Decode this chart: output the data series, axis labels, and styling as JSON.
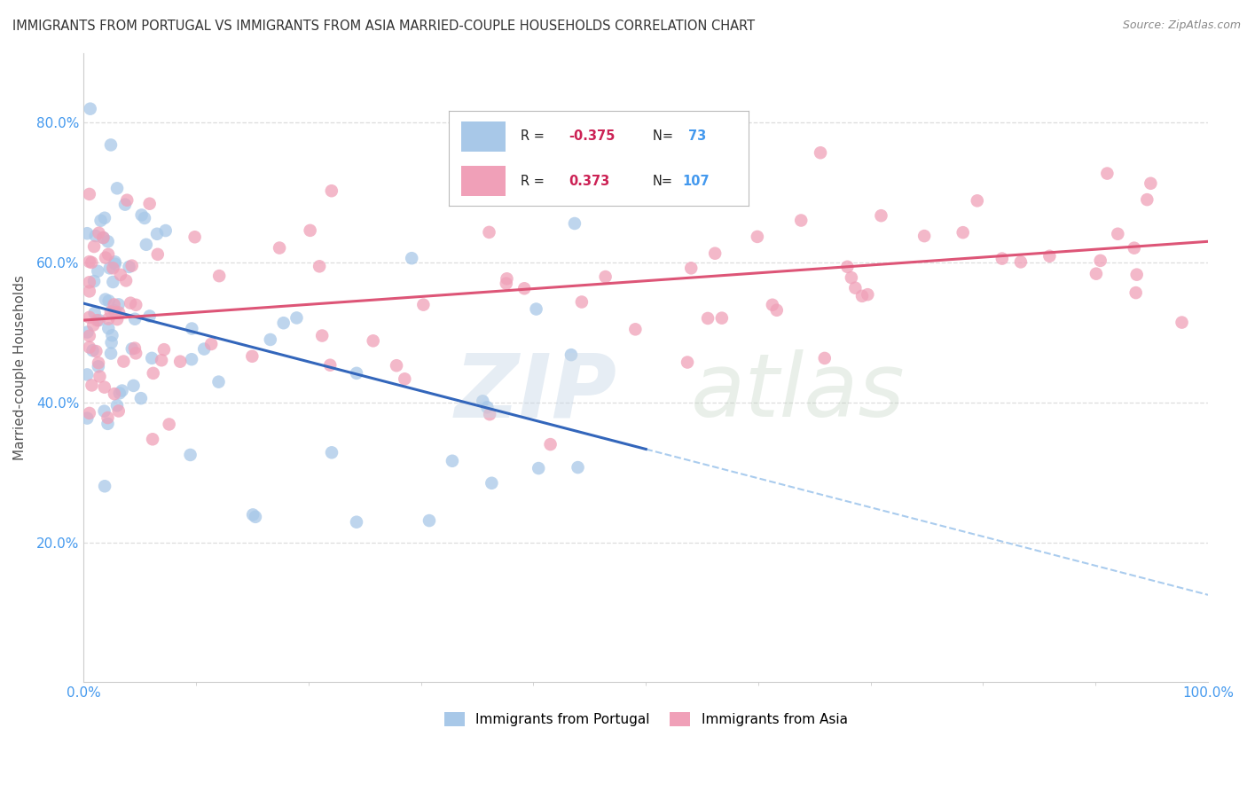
{
  "title": "IMMIGRANTS FROM PORTUGAL VS IMMIGRANTS FROM ASIA MARRIED-COUPLE HOUSEHOLDS CORRELATION CHART",
  "source": "Source: ZipAtlas.com",
  "ylabel": "Married-couple Households",
  "legend1_label": "Immigrants from Portugal",
  "legend2_label": "Immigrants from Asia",
  "r1": -0.375,
  "n1": 73,
  "r2": 0.373,
  "n2": 107,
  "color_portugal": "#a8c8e8",
  "color_asia": "#f0a0b8",
  "line_color_portugal": "#3366bb",
  "line_color_asia": "#dd5577",
  "line_color_dashed": "#aaccee",
  "ytick_color": "#4499ee",
  "xtick_color": "#4499ee",
  "ylabel_color": "#555555",
  "title_color": "#333333",
  "source_color": "#888888",
  "grid_color": "#dddddd",
  "port_seed": 7,
  "asia_seed": 15
}
